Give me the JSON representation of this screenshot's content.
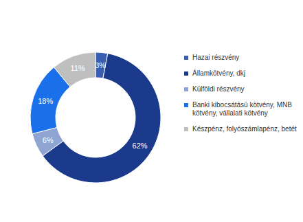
{
  "chart_data": {
    "type": "pie",
    "categories": [
      "Hazai részvény",
      "Államkötvény, dkj",
      "Külföldi részvény",
      "Banki kibocsátású kötvény, MNB kötvény, vállalati kötvény",
      "Készpénz, folyószámlapénz, betét"
    ],
    "values": [
      3,
      62,
      6,
      18,
      11
    ],
    "value_labels": [
      "3%",
      "62%",
      "6%",
      "18%",
      "11%"
    ],
    "colors": [
      "#3b5fb0",
      "#1b3a8c",
      "#8fa4d2",
      "#1a6fea",
      "#bfbfbf"
    ],
    "data_labels": true,
    "legend": "right"
  }
}
